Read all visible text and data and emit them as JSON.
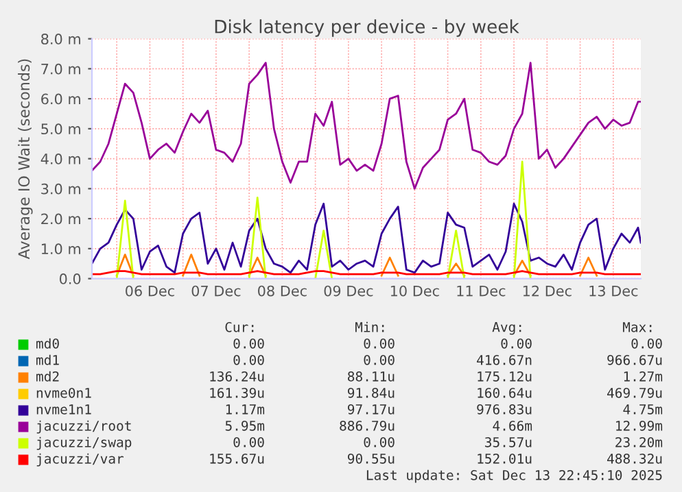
{
  "chart_data": {
    "type": "line",
    "title": "Disk latency per device - by week",
    "ylabel": "Average IO Wait (seconds)",
    "x": [
      "2025-12-05T15:00",
      "2025-12-05T18:00",
      "2025-12-05T21:00",
      "2025-12-06T00:00",
      "2025-12-06T03:00",
      "2025-12-06T06:00",
      "2025-12-06T09:00",
      "2025-12-06T12:00",
      "2025-12-06T15:00",
      "2025-12-06T18:00",
      "2025-12-06T21:00",
      "2025-12-07T00:00",
      "2025-12-07T03:00",
      "2025-12-07T06:00",
      "2025-12-07T09:00",
      "2025-12-07T12:00",
      "2025-12-07T15:00",
      "2025-12-07T18:00",
      "2025-12-07T21:00",
      "2025-12-08T00:00",
      "2025-12-08T03:00",
      "2025-12-08T06:00",
      "2025-12-08T09:00",
      "2025-12-08T12:00",
      "2025-12-08T15:00",
      "2025-12-08T18:00",
      "2025-12-08T21:00",
      "2025-12-09T00:00",
      "2025-12-09T03:00",
      "2025-12-09T06:00",
      "2025-12-09T09:00",
      "2025-12-09T12:00",
      "2025-12-09T15:00",
      "2025-12-09T18:00",
      "2025-12-09T21:00",
      "2025-12-10T00:00",
      "2025-12-10T03:00",
      "2025-12-10T06:00",
      "2025-12-10T09:00",
      "2025-12-10T12:00",
      "2025-12-10T15:00",
      "2025-12-10T18:00",
      "2025-12-10T21:00",
      "2025-12-11T00:00",
      "2025-12-11T03:00",
      "2025-12-11T06:00",
      "2025-12-11T09:00",
      "2025-12-11T12:00",
      "2025-12-11T15:00",
      "2025-12-11T18:00",
      "2025-12-11T21:00",
      "2025-12-12T00:00",
      "2025-12-12T03:00",
      "2025-12-12T06:00",
      "2025-12-12T09:00",
      "2025-12-12T12:00",
      "2025-12-12T15:00",
      "2025-12-12T18:00",
      "2025-12-12T21:00",
      "2025-12-13T00:00",
      "2025-12-13T03:00",
      "2025-12-13T06:00",
      "2025-12-13T09:00",
      "2025-12-13T12:00",
      "2025-12-13T15:00",
      "2025-12-13T18:00",
      "2025-12-13T21:00",
      "2025-12-13T22:00"
    ],
    "series": [
      {
        "name": "md0",
        "color": "#00cc00",
        "values": [
          null,
          null,
          null,
          null,
          null,
          null,
          null,
          null,
          null,
          null,
          null,
          null,
          null,
          null,
          null,
          null,
          null,
          null,
          null,
          null,
          null,
          null,
          null,
          null,
          null,
          null,
          null,
          null,
          null,
          null,
          null,
          null,
          null,
          null,
          null,
          null,
          null,
          null,
          null,
          null,
          null,
          null,
          null,
          null,
          null,
          null,
          null,
          null,
          null,
          null,
          null,
          null,
          null,
          null,
          null,
          null,
          null,
          null,
          null,
          null,
          null,
          null,
          null,
          null,
          null,
          null,
          null,
          null
        ]
      },
      {
        "name": "md1",
        "color": "#0066b3",
        "values": [
          null,
          null,
          null,
          null,
          null,
          null,
          null,
          null,
          null,
          null,
          null,
          null,
          null,
          null,
          null,
          null,
          null,
          null,
          null,
          null,
          null,
          null,
          null,
          null,
          null,
          null,
          null,
          null,
          null,
          null,
          null,
          null,
          null,
          null,
          null,
          null,
          null,
          null,
          null,
          null,
          null,
          null,
          null,
          null,
          null,
          null,
          null,
          null,
          null,
          null,
          null,
          null,
          null,
          null,
          null,
          null,
          null,
          null,
          null,
          null,
          null,
          null,
          null,
          null,
          null,
          null,
          null,
          null
        ]
      },
      {
        "name": "md2",
        "color": "#ff8000",
        "values": [
          null,
          null,
          null,
          0.1,
          0.8,
          0.1,
          null,
          null,
          null,
          null,
          null,
          0.1,
          0.8,
          0.1,
          null,
          null,
          null,
          null,
          null,
          0.1,
          0.7,
          0.1,
          null,
          null,
          null,
          null,
          null,
          null,
          null,
          null,
          null,
          null,
          null,
          null,
          null,
          0.1,
          0.7,
          0.1,
          null,
          null,
          null,
          null,
          null,
          0.1,
          0.5,
          0.1,
          null,
          null,
          null,
          null,
          null,
          0.1,
          0.6,
          0.1,
          null,
          null,
          null,
          null,
          null,
          0.1,
          0.7,
          0.1,
          null,
          null,
          null,
          null,
          null,
          null
        ]
      },
      {
        "name": "nvme0n1",
        "color": "#ffcc00",
        "values": [
          null,
          null,
          null,
          null,
          null,
          null,
          null,
          null,
          null,
          null,
          null,
          null,
          null,
          null,
          null,
          null,
          null,
          null,
          null,
          null,
          null,
          null,
          null,
          null,
          null,
          null,
          null,
          null,
          null,
          null,
          null,
          null,
          null,
          null,
          null,
          null,
          null,
          null,
          null,
          null,
          null,
          null,
          null,
          null,
          null,
          null,
          null,
          null,
          null,
          null,
          null,
          null,
          null,
          null,
          null,
          null,
          null,
          null,
          null,
          null,
          null,
          null,
          null,
          null,
          null,
          null,
          null,
          null
        ]
      },
      {
        "name": "nvme1n1",
        "color": "#330099",
        "values": [
          0.5,
          1.0,
          1.2,
          1.8,
          2.3,
          2.0,
          0.3,
          0.9,
          1.1,
          0.4,
          0.2,
          1.5,
          2.0,
          2.2,
          0.5,
          1.0,
          0.3,
          1.2,
          0.4,
          1.6,
          2.0,
          1.0,
          0.5,
          0.4,
          0.2,
          0.6,
          0.3,
          1.8,
          2.5,
          0.4,
          0.6,
          0.3,
          0.5,
          0.6,
          0.4,
          1.5,
          2.0,
          2.4,
          0.3,
          0.2,
          0.6,
          0.4,
          0.5,
          2.2,
          1.8,
          1.7,
          0.4,
          0.6,
          0.8,
          0.3,
          0.9,
          2.5,
          1.9,
          0.6,
          0.7,
          0.5,
          0.4,
          0.8,
          0.3,
          1.2,
          1.8,
          2.0,
          0.3,
          1.0,
          1.5,
          1.2,
          1.7,
          1.2
        ]
      },
      {
        "name": "jacuzzi/root",
        "color": "#990099",
        "values": [
          3.6,
          3.9,
          4.5,
          5.5,
          6.5,
          6.2,
          5.2,
          4.0,
          4.3,
          4.5,
          4.2,
          4.9,
          5.5,
          5.2,
          5.6,
          4.3,
          4.2,
          3.9,
          4.5,
          6.5,
          6.8,
          7.2,
          5.0,
          3.9,
          3.2,
          3.9,
          3.9,
          5.5,
          5.1,
          5.9,
          3.8,
          4.0,
          3.6,
          3.8,
          3.6,
          4.5,
          6.0,
          6.1,
          3.9,
          3.0,
          3.7,
          4.0,
          4.3,
          5.3,
          5.5,
          6.0,
          4.3,
          4.2,
          3.9,
          3.8,
          4.1,
          5.0,
          5.5,
          7.2,
          4.0,
          4.3,
          3.7,
          4.0,
          4.4,
          4.8,
          5.2,
          5.4,
          5.0,
          5.3,
          5.1,
          5.2,
          5.9,
          5.9
        ]
      },
      {
        "name": "jacuzzi/swap",
        "color": "#ccff00",
        "values": [
          null,
          null,
          null,
          0,
          2.6,
          0,
          null,
          null,
          null,
          null,
          null,
          null,
          null,
          null,
          null,
          null,
          null,
          null,
          null,
          0,
          2.7,
          0,
          null,
          null,
          null,
          null,
          null,
          0,
          1.6,
          0,
          null,
          null,
          null,
          null,
          null,
          null,
          null,
          null,
          null,
          null,
          null,
          null,
          null,
          0,
          1.6,
          0,
          null,
          null,
          null,
          null,
          null,
          0,
          3.9,
          0,
          null,
          null,
          null,
          null,
          null,
          null,
          null,
          null,
          null,
          null,
          null,
          null,
          null,
          null
        ]
      },
      {
        "name": "jacuzzi/var",
        "color": "#ff0000",
        "values": [
          0.15,
          0.15,
          0.2,
          0.25,
          0.25,
          0.2,
          0.15,
          0.15,
          0.15,
          0.15,
          0.15,
          0.2,
          0.2,
          0.2,
          0.15,
          0.15,
          0.15,
          0.15,
          0.15,
          0.2,
          0.25,
          0.2,
          0.15,
          0.15,
          0.15,
          0.15,
          0.2,
          0.25,
          0.25,
          0.2,
          0.15,
          0.15,
          0.15,
          0.15,
          0.15,
          0.2,
          0.2,
          0.2,
          0.15,
          0.15,
          0.15,
          0.15,
          0.15,
          0.2,
          0.2,
          0.2,
          0.15,
          0.15,
          0.15,
          0.15,
          0.15,
          0.2,
          0.25,
          0.2,
          0.15,
          0.15,
          0.15,
          0.15,
          0.15,
          0.2,
          0.2,
          0.2,
          0.15,
          0.15,
          0.15,
          0.15,
          0.15,
          0.15
        ]
      }
    ],
    "xlim": [
      "2025-12-05T15:00",
      "2025-12-13T22:00"
    ],
    "xticks": [
      {
        "value": "2025-12-06T00:00",
        "label": null
      },
      {
        "value": "2025-12-06T12:00",
        "label": "06 Dec"
      },
      {
        "value": "2025-12-07T00:00",
        "label": null
      },
      {
        "value": "2025-12-07T12:00",
        "label": "07 Dec"
      },
      {
        "value": "2025-12-08T00:00",
        "label": null
      },
      {
        "value": "2025-12-08T12:00",
        "label": "08 Dec"
      },
      {
        "value": "2025-12-09T00:00",
        "label": null
      },
      {
        "value": "2025-12-09T12:00",
        "label": "09 Dec"
      },
      {
        "value": "2025-12-10T00:00",
        "label": null
      },
      {
        "value": "2025-12-10T12:00",
        "label": "10 Dec"
      },
      {
        "value": "2025-12-11T00:00",
        "label": null
      },
      {
        "value": "2025-12-11T12:00",
        "label": "11 Dec"
      },
      {
        "value": "2025-12-12T00:00",
        "label": null
      },
      {
        "value": "2025-12-12T12:00",
        "label": "12 Dec"
      },
      {
        "value": "2025-12-13T00:00",
        "label": null
      },
      {
        "value": "2025-12-13T12:00",
        "label": "13 Dec"
      }
    ],
    "ylim": [
      0,
      8
    ],
    "yticks": [
      {
        "value": 0,
        "label": "0.0"
      },
      {
        "value": 1,
        "label": "1.0 m"
      },
      {
        "value": 2,
        "label": "2.0 m"
      },
      {
        "value": 3,
        "label": "3.0 m"
      },
      {
        "value": 4,
        "label": "4.0 m"
      },
      {
        "value": 5,
        "label": "5.0 m"
      },
      {
        "value": 6,
        "label": "6.0 m"
      },
      {
        "value": 7,
        "label": "7.0 m"
      },
      {
        "value": 8,
        "label": "8.0 m"
      }
    ],
    "grid": true,
    "legend": "bottom",
    "annotations": [
      "Cur:",
      "Min:",
      "Avg:",
      "Max:",
      "0.00",
      "0.00",
      "0.00",
      "0.00",
      "0.00",
      "0.00",
      "416.67n",
      "966.67u",
      "136.24u",
      "88.11u",
      "175.12u",
      "1.27m",
      "161.39u",
      "91.84u",
      "160.64u",
      "469.79u",
      "1.17m",
      "97.17u",
      "976.83u",
      "4.75m",
      "5.95m",
      "886.79u",
      "4.66m",
      "12.99m",
      "0.00",
      "0.00",
      "35.57u",
      "23.20m",
      "155.67u",
      "90.55u",
      "152.01u",
      "488.32u",
      "Last update: Sat Dec 13 22:45:10 2025"
    ]
  }
}
